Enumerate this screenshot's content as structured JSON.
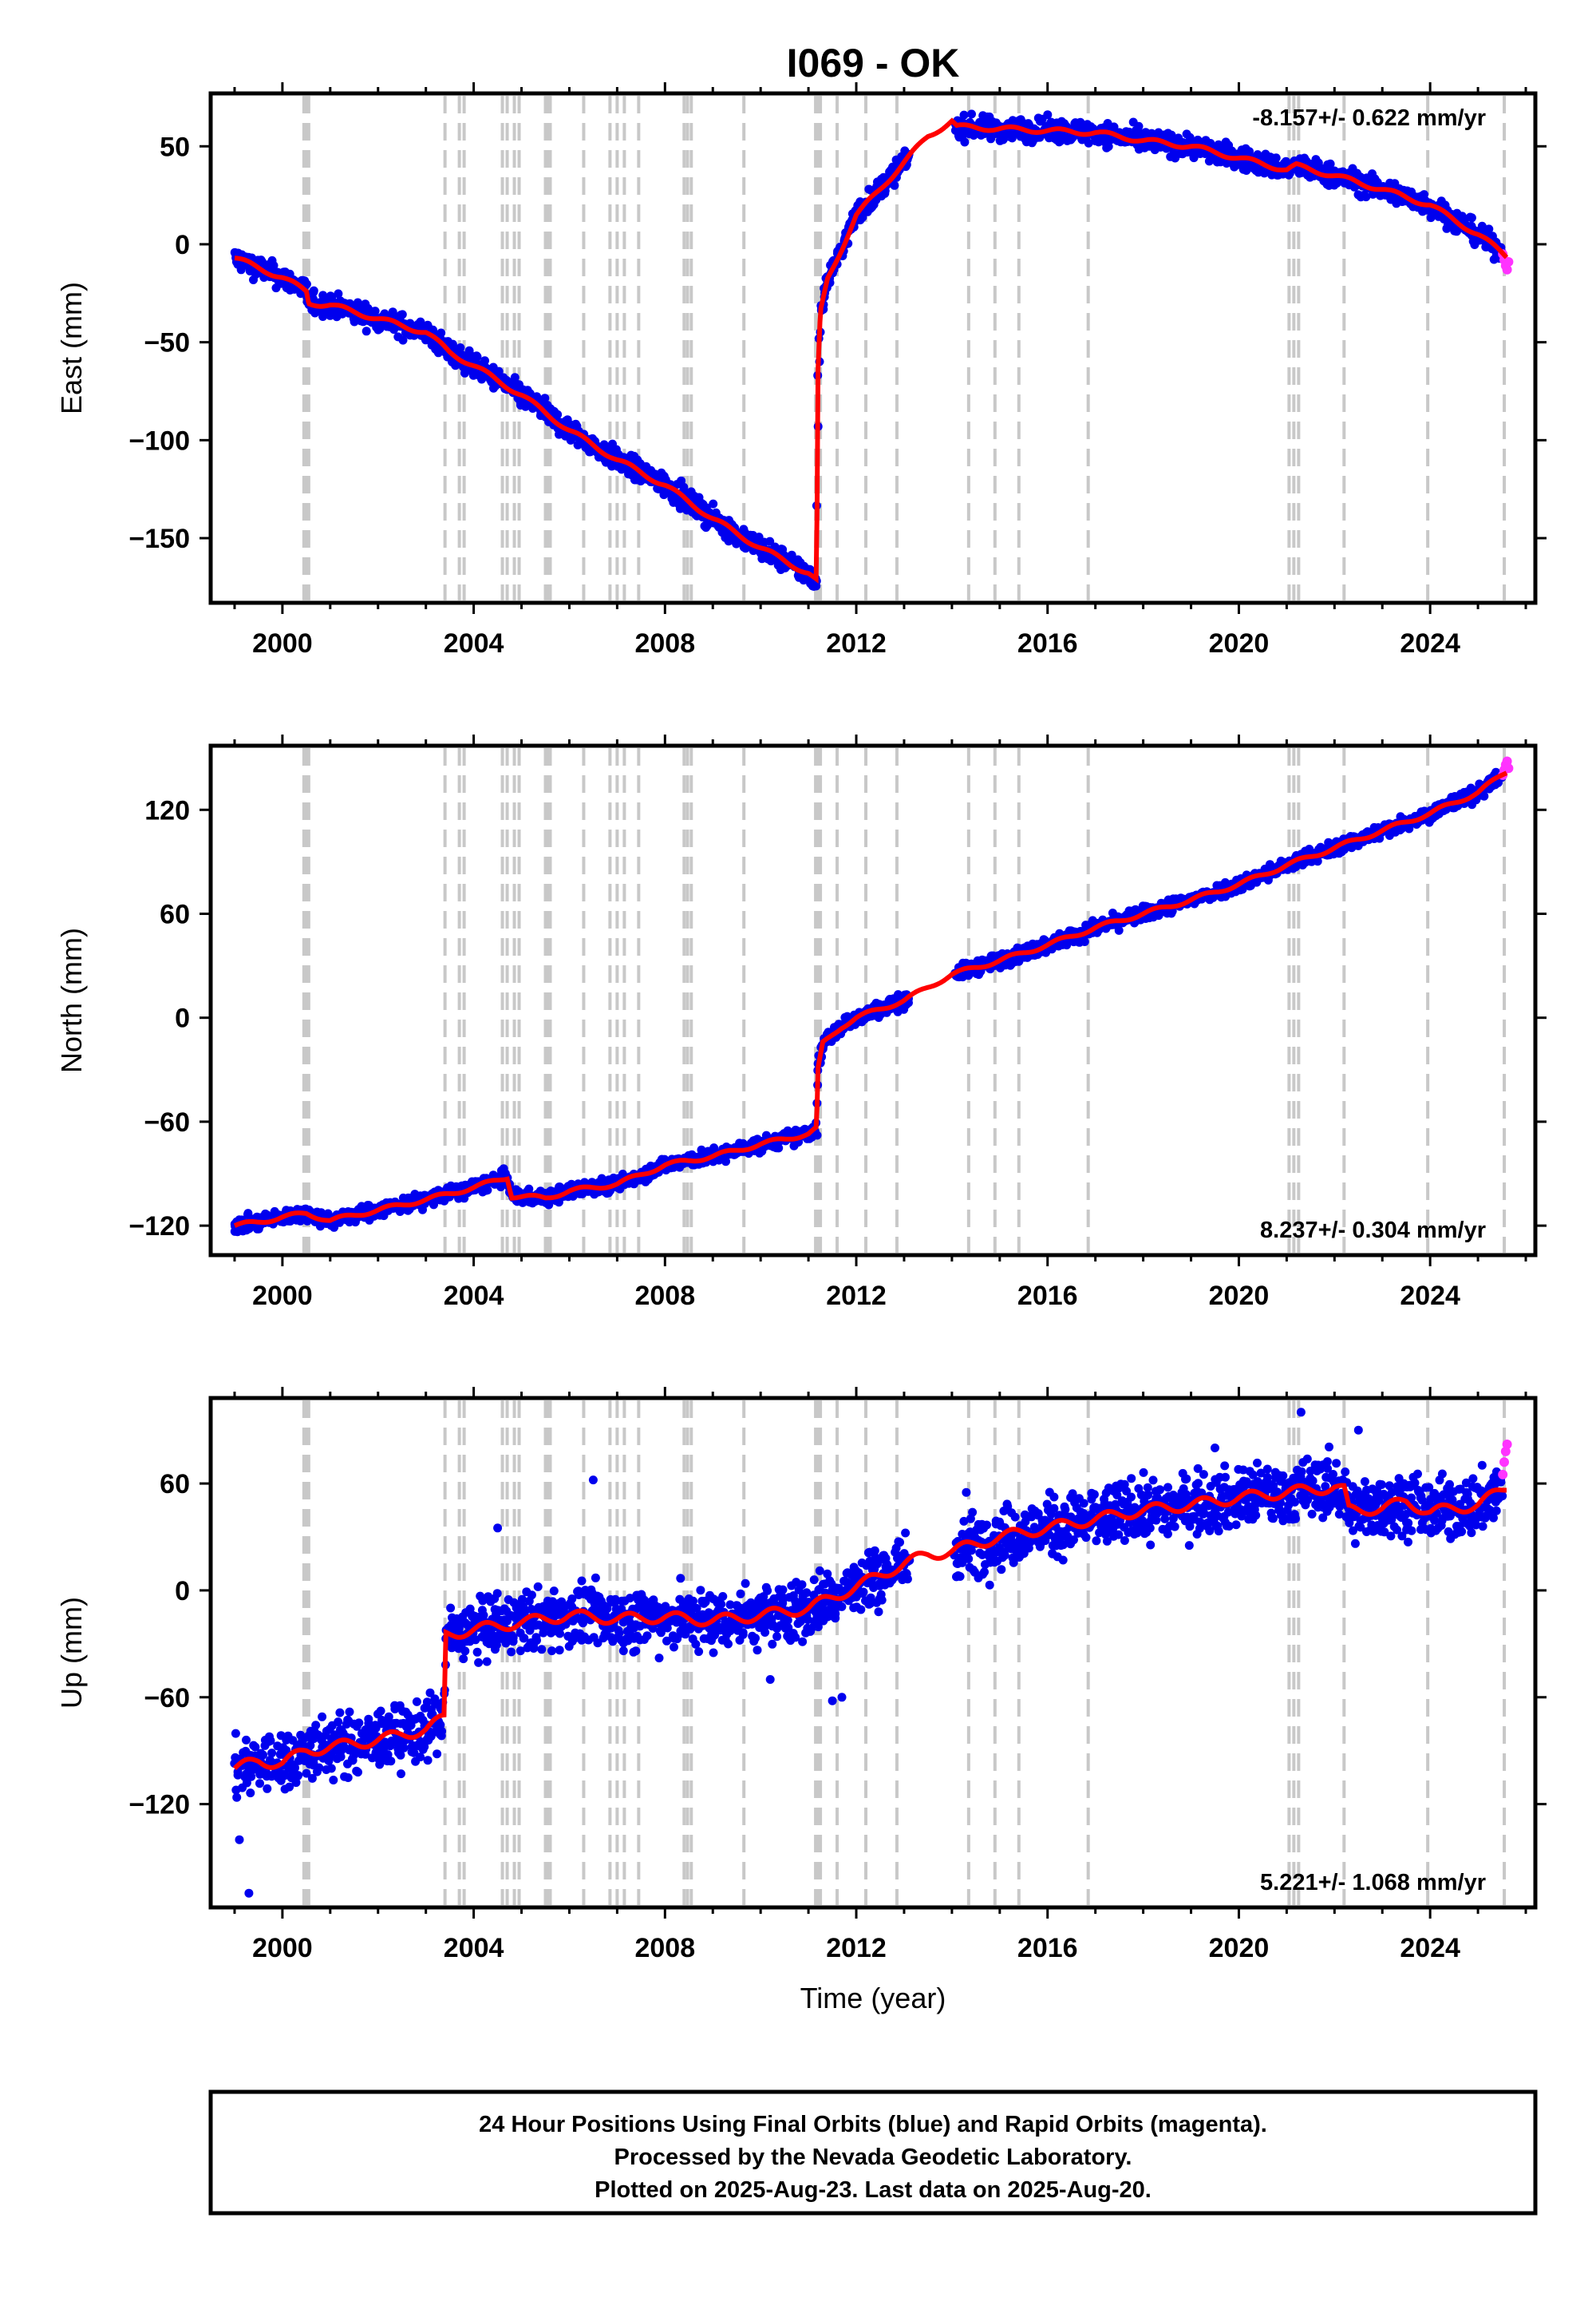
{
  "figure": {
    "title": "I069 - OK",
    "xlabel": "Time (year)",
    "footer": {
      "line1": "24 Hour Positions Using Final Orbits (blue) and Rapid Orbits (magenta).",
      "line2": "Processed by the Nevada Geodetic Laboratory.",
      "line3": "Plotted on 2025-Aug-23. Last data on 2025-Aug-20."
    },
    "colors": {
      "final_orbits": "#0000ee",
      "rapid_orbits": "#ff33ff",
      "model_fit": "#ff0000",
      "event_lines": "#c8c8c8"
    },
    "x_ticks": [
      2000,
      2004,
      2008,
      2012,
      2016,
      2020,
      2024
    ],
    "xlim": [
      1998.5,
      2026.2
    ],
    "event_lines": [
      2000.45,
      2000.5,
      2000.55,
      2003.4,
      2003.7,
      2003.8,
      2004.6,
      2004.7,
      2004.85,
      2004.95,
      2005.5,
      2005.55,
      2005.6,
      2006.3,
      2006.85,
      2007.0,
      2007.15,
      2007.45,
      2008.4,
      2008.47,
      2008.55,
      2009.65,
      2011.15,
      2011.2,
      2011.25,
      2011.6,
      2012.2,
      2012.85,
      2014.35,
      2014.9,
      2015.4,
      2016.85,
      2021.05,
      2021.15,
      2021.25,
      2022.2,
      2023.95,
      2025.55
    ]
  },
  "chart_data": [
    {
      "type": "scatter",
      "component": "east",
      "ylabel": "East (mm)",
      "rate_label": "-8.157+/- 0.622 mm/yr",
      "rate_position": "top-right",
      "ylim": [
        -183,
        77
      ],
      "y_ticks": [
        50,
        0,
        -50,
        -100,
        -150
      ],
      "scatter_spread": 4,
      "final_orbits_range": [
        1999.0,
        2025.5
      ],
      "rapid_orbits": {
        "x": [
          2025.52,
          2025.55,
          2025.58,
          2025.61,
          2025.64
        ],
        "y": [
          -5,
          -8,
          -11,
          -13,
          -9
        ]
      },
      "model_fit": {
        "x": [
          1999.0,
          1999.5,
          2000.0,
          2000.5,
          2000.55,
          2001.0,
          2002.0,
          2003.0,
          2003.5,
          2004.0,
          2005.0,
          2006.0,
          2007.0,
          2008.0,
          2009.0,
          2010.0,
          2011.0,
          2011.17,
          2011.2,
          2011.25,
          2011.4,
          2011.7,
          2012.0,
          2012.5,
          2013.0,
          2013.5,
          2014.0,
          2014.1,
          2015.0,
          2016.0,
          2017.0,
          2018.0,
          2019.0,
          2020.0,
          2021.0,
          2021.2,
          2022.0,
          2023.0,
          2024.0,
          2025.0,
          2025.6
        ],
        "y": [
          -7,
          -12,
          -17,
          -24,
          -30,
          -31,
          -38,
          -45,
          -55,
          -62,
          -77,
          -95,
          -110,
          -123,
          -140,
          -155,
          -168,
          -172,
          -65,
          -35,
          -18,
          -2,
          15,
          28,
          42,
          55,
          63,
          60,
          59,
          58,
          57,
          53,
          50,
          44,
          38,
          40,
          35,
          28,
          20,
          5,
          -6
        ]
      }
    },
    {
      "type": "scatter",
      "component": "north",
      "ylabel": "North (mm)",
      "rate_label": "8.237+/- 0.304 mm/yr",
      "rate_position": "bottom-right",
      "ylim": [
        -137,
        157
      ],
      "y_ticks": [
        120,
        60,
        0,
        -60,
        -120
      ],
      "scatter_spread": 3,
      "final_orbits_range": [
        1999.0,
        2025.5
      ],
      "rapid_orbits": {
        "x": [
          2025.52,
          2025.55,
          2025.58,
          2025.61,
          2025.64
        ],
        "y": [
          140,
          143,
          146,
          148,
          144
        ]
      },
      "model_fit": {
        "x": [
          1999.0,
          1999.5,
          2000.0,
          2000.5,
          2001.0,
          2002.0,
          2003.0,
          2004.0,
          2004.7,
          2004.8,
          2005.5,
          2006.0,
          2007.0,
          2008.0,
          2009.0,
          2010.0,
          2011.0,
          2011.17,
          2011.2,
          2011.3,
          2011.7,
          2012.0,
          2013.0,
          2014.0,
          2015.0,
          2016.0,
          2017.0,
          2018.0,
          2019.0,
          2020.0,
          2021.0,
          2022.0,
          2023.0,
          2024.0,
          2025.0,
          2025.6
        ],
        "y": [
          -120,
          -118,
          -115,
          -113,
          -117,
          -111,
          -105,
          -98,
          -92,
          -103,
          -104,
          -100,
          -96,
          -85,
          -80,
          -73,
          -67,
          -64,
          -30,
          -15,
          -5,
          0,
          10,
          25,
          33,
          42,
          52,
          60,
          68,
          77,
          88,
          98,
          108,
          118,
          130,
          142
        ]
      }
    },
    {
      "type": "scatter",
      "component": "up",
      "ylabel": "Up (mm)",
      "rate_label": "5.221+/- 1.068 mm/yr",
      "rate_position": "bottom-right",
      "ylim": [
        -178,
        108
      ],
      "y_ticks": [
        60,
        0,
        -60,
        -120
      ],
      "scatter_spread": 12,
      "final_orbits_range": [
        1999.0,
        2025.5
      ],
      "rapid_orbits": {
        "x": [
          2025.52,
          2025.55,
          2025.58,
          2025.61
        ],
        "y": [
          65,
          72,
          78,
          82
        ]
      },
      "model_fit": {
        "x": [
          1999.0,
          1999.5,
          2000.0,
          2000.5,
          2001.0,
          2002.0,
          2003.0,
          2003.38,
          2003.42,
          2004.0,
          2005.0,
          2006.0,
          2007.0,
          2008.0,
          2009.0,
          2010.0,
          2011.0,
          2012.0,
          2013.0,
          2013.5,
          2014.0,
          2015.0,
          2016.0,
          2017.0,
          2018.0,
          2019.0,
          2020.0,
          2021.0,
          2022.0,
          2022.2,
          2022.3,
          2023.0,
          2023.5,
          2024.0,
          2025.0,
          2025.6
        ],
        "y": [
          -100,
          -96,
          -97,
          -90,
          -88,
          -84,
          -78,
          -72,
          -25,
          -22,
          -18,
          -14,
          -16,
          -15,
          -17,
          -14,
          -10,
          2,
          15,
          20,
          22,
          30,
          35,
          40,
          45,
          48,
          52,
          55,
          58,
          56,
          45,
          46,
          50,
          44,
          48,
          58
        ]
      },
      "outliers": {
        "x": [
          1999.1,
          1999.3,
          2006.5,
          2011.5,
          2004.5,
          2021.3,
          2022.5,
          2011.7,
          2014.3,
          2019.5,
          2010.2
        ],
        "y": [
          -140,
          -170,
          62,
          -62,
          35,
          100,
          90,
          -60,
          55,
          80,
          -50
        ]
      }
    }
  ]
}
